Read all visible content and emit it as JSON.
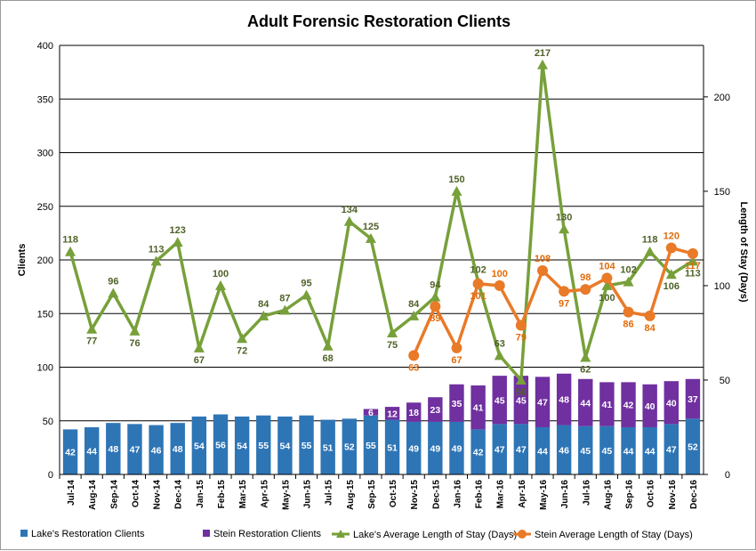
{
  "chart_data": {
    "type": "bar",
    "title": "Adult Forensic Restoration Clients",
    "ylabel": "Clients",
    "y2label": "Length of Stay (Days)",
    "ylim": [
      0,
      400
    ],
    "y2lim": [
      0,
      227.27
    ],
    "yticks": [
      "0",
      "50",
      "100",
      "150",
      "200",
      "250",
      "300",
      "350",
      "400"
    ],
    "y2ticks": [
      "0",
      "50",
      "100",
      "150",
      "200"
    ],
    "grid": true,
    "legend_position": "bottom",
    "categories": [
      "Jul-14",
      "Aug-14",
      "Sep-14",
      "Oct-14",
      "Nov-14",
      "Dec-14",
      "Jan-15",
      "Feb-15",
      "Mar-15",
      "Apr-15",
      "May-15",
      "Jun-15",
      "Jul-15",
      "Aug-15",
      "Sep-15",
      "Oct-15",
      "Nov-15",
      "Dec-15",
      "Jan-16",
      "Feb-16",
      "Mar-16",
      "Apr-16",
      "May-16",
      "Jun-16",
      "Jul-16",
      "Aug-16",
      "Sep-16",
      "Oct-16",
      "Nov-16",
      "Dec-16"
    ],
    "series": [
      {
        "name": "Lake's Restoration Clients",
        "kind": "stacked-bar",
        "axis": "left",
        "color": "#2e75b6",
        "values": [
          42,
          44,
          48,
          47,
          46,
          48,
          54,
          56,
          54,
          55,
          54,
          55,
          51,
          52,
          55,
          51,
          49,
          49,
          49,
          42,
          47,
          47,
          44,
          46,
          45,
          45,
          44,
          44,
          47,
          52
        ]
      },
      {
        "name": "Stein Restoration Clients",
        "kind": "stacked-bar",
        "axis": "left",
        "color": "#7030a0",
        "values": [
          null,
          null,
          null,
          null,
          null,
          null,
          null,
          null,
          null,
          null,
          null,
          null,
          null,
          null,
          6,
          12,
          18,
          23,
          35,
          41,
          45,
          45,
          47,
          48,
          44,
          41,
          42,
          40,
          40,
          37
        ]
      },
      {
        "name": "Lake's Average Length of Stay (Days)",
        "kind": "line",
        "axis": "right",
        "color": "#77a03a",
        "label_color": "#4f6228",
        "marker": "triangle",
        "values": [
          118,
          77,
          96,
          76,
          113,
          123,
          67,
          100,
          72,
          84,
          87,
          95,
          68,
          134,
          125,
          75,
          84,
          94,
          150,
          102,
          63,
          50,
          217,
          130,
          62,
          100,
          102,
          118,
          106,
          113
        ]
      },
      {
        "name": "Stein Average Length of Stay (Days)",
        "kind": "line",
        "axis": "right",
        "color": "#e97a28",
        "label_color": "#e26b0a",
        "marker": "circle",
        "values": [
          null,
          null,
          null,
          null,
          null,
          null,
          null,
          null,
          null,
          null,
          null,
          null,
          null,
          null,
          null,
          null,
          63,
          89,
          67,
          101,
          100,
          79,
          108,
          97,
          98,
          104,
          86,
          84,
          120,
          117
        ]
      }
    ]
  }
}
